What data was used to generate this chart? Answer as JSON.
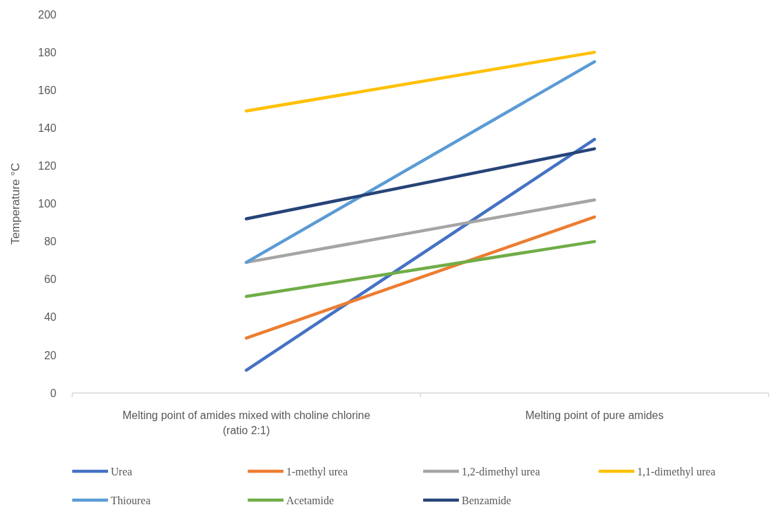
{
  "chart_data": {
    "type": "line",
    "ylabel": "Temperature °C",
    "categories": [
      "Melting point of amides mixed with choline chlorine (ratio 2:1)",
      "Melting point of pure amides"
    ],
    "series": [
      {
        "name": "Urea",
        "color": "#4472c4",
        "values": [
          12,
          134
        ]
      },
      {
        "name": "1-methyl urea",
        "color": "#ed7d31",
        "values": [
          29,
          93
        ]
      },
      {
        "name": "1,2-dimethyl urea",
        "color": "#a5a5a5",
        "values": [
          69,
          102
        ]
      },
      {
        "name": "1,1-dimethyl urea",
        "color": "#ffc000",
        "values": [
          149,
          180
        ]
      },
      {
        "name": "Thiourea",
        "color": "#5b9bd5",
        "values": [
          69,
          175
        ]
      },
      {
        "name": "Acetamide",
        "color": "#70ad47",
        "values": [
          51,
          80
        ]
      },
      {
        "name": "Benzamide",
        "color": "#264478",
        "values": [
          92,
          129
        ]
      }
    ],
    "ylim": [
      0,
      200
    ],
    "yticks": [
      0,
      20,
      40,
      60,
      80,
      100,
      120,
      140,
      160,
      180,
      200
    ],
    "grid": false,
    "legend": "bottom",
    "marker": "none",
    "line_style": "solid"
  }
}
